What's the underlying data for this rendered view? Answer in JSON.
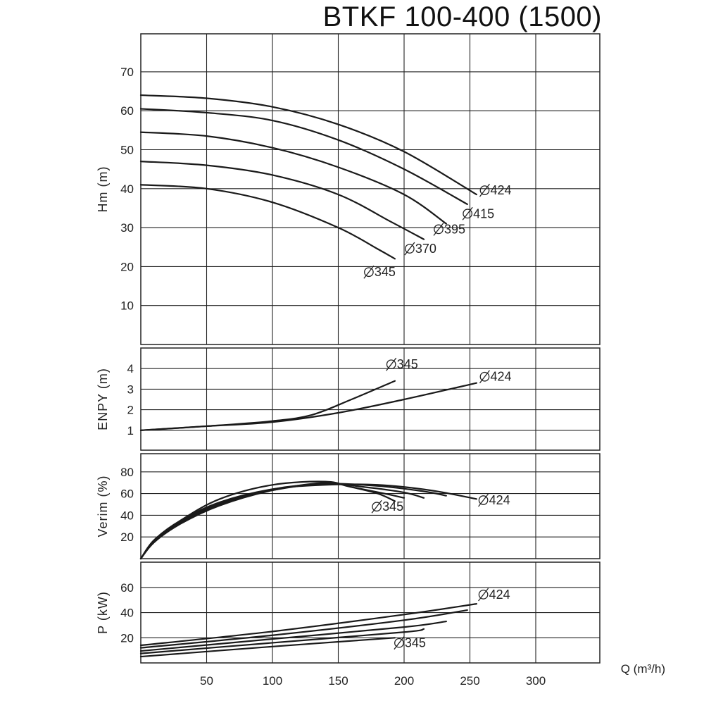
{
  "title": "BTKF 100-400 (1500)",
  "chart_data": [
    {
      "id": "head",
      "type": "line",
      "title": "BTKF 100-400 (1500)",
      "ylabel": "Hm (m)",
      "xlim": [
        0,
        350
      ],
      "ylim": [
        0,
        80
      ],
      "x_ticks": [
        50,
        100,
        150,
        200,
        250,
        300
      ],
      "y_ticks": [
        10,
        20,
        30,
        40,
        50,
        60,
        70
      ],
      "grid": true,
      "series": [
        {
          "name": "Ø424",
          "label_text": "424",
          "points": [
            [
              0,
              64
            ],
            [
              50,
              63.2
            ],
            [
              100,
              61
            ],
            [
              150,
              56.5
            ],
            [
              200,
              49.5
            ],
            [
              255,
              38.5
            ]
          ]
        },
        {
          "name": "Ø415",
          "label_text": "415",
          "points": [
            [
              0,
              60.5
            ],
            [
              50,
              59.5
            ],
            [
              100,
              57.5
            ],
            [
              150,
              52.5
            ],
            [
              200,
              45
            ],
            [
              248,
              36
            ]
          ]
        },
        {
          "name": "Ø395",
          "label_text": "395",
          "points": [
            [
              0,
              54.5
            ],
            [
              50,
              53.5
            ],
            [
              100,
              50.5
            ],
            [
              150,
              45.5
            ],
            [
              200,
              38.5
            ],
            [
              232,
              31
            ]
          ]
        },
        {
          "name": "Ø370",
          "label_text": "370",
          "points": [
            [
              0,
              47
            ],
            [
              50,
              46
            ],
            [
              100,
              43.5
            ],
            [
              150,
              38.5
            ],
            [
              190,
              31.5
            ],
            [
              215,
              27
            ]
          ]
        },
        {
          "name": "Ø345",
          "label_text": "345",
          "points": [
            [
              0,
              41
            ],
            [
              50,
              40
            ],
            [
              100,
              36.5
            ],
            [
              150,
              30
            ],
            [
              180,
              24.5
            ],
            [
              193,
              22
            ]
          ]
        }
      ]
    },
    {
      "id": "npsh",
      "type": "line",
      "ylabel": "ENPY (m)",
      "xlim": [
        0,
        350
      ],
      "ylim": [
        0,
        5
      ],
      "y_ticks": [
        1,
        2,
        3,
        4
      ],
      "grid": true,
      "series": [
        {
          "name": "Ø345",
          "label_text": "345",
          "points": [
            [
              0,
              1
            ],
            [
              50,
              1.2
            ],
            [
              100,
              1.45
            ],
            [
              130,
              1.75
            ],
            [
              160,
              2.5
            ],
            [
              193,
              3.4
            ]
          ]
        },
        {
          "name": "Ø424",
          "label_text": "424",
          "points": [
            [
              0,
              1
            ],
            [
              50,
              1.2
            ],
            [
              100,
              1.4
            ],
            [
              150,
              1.85
            ],
            [
              200,
              2.5
            ],
            [
              255,
              3.3
            ]
          ]
        }
      ]
    },
    {
      "id": "efficiency",
      "type": "line",
      "ylabel": "Verim (%)",
      "xlim": [
        0,
        350
      ],
      "ylim": [
        0,
        90
      ],
      "y_ticks": [
        20,
        40,
        60,
        80
      ],
      "grid": true,
      "series": [
        {
          "name": "Ø424",
          "label_text": "424",
          "points": [
            [
              0,
              0
            ],
            [
              10,
              17
            ],
            [
              30,
              35
            ],
            [
              60,
              52
            ],
            [
              100,
              64
            ],
            [
              140,
              68
            ],
            [
              180,
              68
            ],
            [
              220,
              63
            ],
            [
              255,
              55
            ]
          ]
        },
        {
          "name": "Ø415",
          "points": [
            [
              0,
              0
            ],
            [
              10,
              16
            ],
            [
              30,
              34
            ],
            [
              60,
              51
            ],
            [
              100,
              64
            ],
            [
              140,
              69
            ],
            [
              180,
              67
            ],
            [
              215,
              62
            ],
            [
              232,
              58
            ]
          ]
        },
        {
          "name": "Ø395",
          "points": [
            [
              0,
              0
            ],
            [
              10,
              15
            ],
            [
              30,
              33
            ],
            [
              60,
              50
            ],
            [
              100,
              63
            ],
            [
              140,
              69
            ],
            [
              170,
              66
            ],
            [
              200,
              61
            ],
            [
              215,
              56
            ]
          ]
        },
        {
          "name": "Ø370",
          "points": [
            [
              0,
              0
            ],
            [
              10,
              15
            ],
            [
              30,
              32
            ],
            [
              60,
              49
            ],
            [
              100,
              63
            ],
            [
              140,
              70
            ],
            [
              160,
              66
            ],
            [
              185,
              60
            ],
            [
              200,
              56
            ]
          ]
        },
        {
          "name": "Ø345",
          "label_text": "345",
          "points": [
            [
              0,
              0
            ],
            [
              10,
              16
            ],
            [
              30,
              35
            ],
            [
              60,
              55
            ],
            [
              100,
              68
            ],
            [
              140,
              71
            ],
            [
              160,
              66
            ],
            [
              180,
              60
            ],
            [
              193,
              53
            ]
          ]
        }
      ]
    },
    {
      "id": "power",
      "type": "line",
      "ylabel": "P (kW)",
      "xlabel": "Q (m³/h)",
      "xlim": [
        0,
        350
      ],
      "ylim": [
        0,
        82
      ],
      "x_ticks": [
        50,
        100,
        150,
        200,
        250,
        300
      ],
      "y_ticks": [
        20,
        40,
        60
      ],
      "grid": true,
      "series": [
        {
          "name": "Ø424",
          "label_text": "424",
          "points": [
            [
              0,
              14
            ],
            [
              100,
              25
            ],
            [
              200,
              38.5
            ],
            [
              255,
              47
            ]
          ]
        },
        {
          "name": "Ø415",
          "points": [
            [
              0,
              12
            ],
            [
              100,
              22
            ],
            [
              200,
              34
            ],
            [
              248,
              42
            ]
          ]
        },
        {
          "name": "Ø395",
          "points": [
            [
              0,
              9.5
            ],
            [
              100,
              19
            ],
            [
              200,
              28.5
            ],
            [
              232,
              33
            ]
          ]
        },
        {
          "name": "Ø370",
          "points": [
            [
              0,
              7.5
            ],
            [
              100,
              16
            ],
            [
              200,
              24.5
            ],
            [
              215,
              27
            ]
          ]
        },
        {
          "name": "Ø345",
          "label_text": "345",
          "points": [
            [
              0,
              5
            ],
            [
              100,
              13
            ],
            [
              193,
              20
            ]
          ]
        }
      ]
    }
  ]
}
